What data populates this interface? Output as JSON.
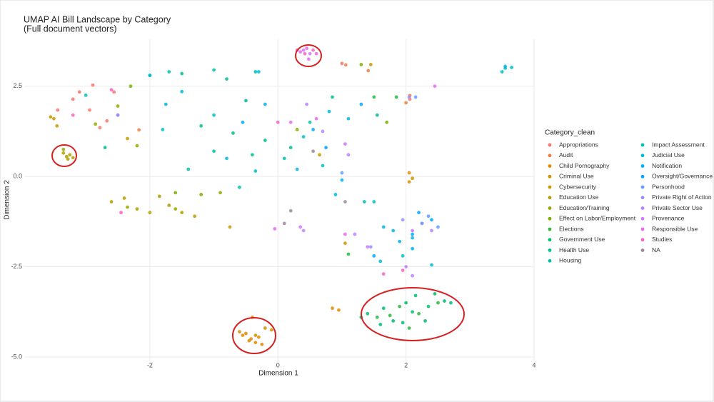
{
  "chart_data": {
    "type": "scatter",
    "title": "UMAP AI Bill Landscape by Category",
    "subtitle": "(Full document vectors)",
    "x_label": "Dimension 1",
    "y_label": "Dimension 2",
    "legend_title": "Category_clean",
    "legend_position": "right",
    "grid": true,
    "xlim": [
      -3.95,
      4.0
    ],
    "ylim": [
      -5.1,
      3.8
    ],
    "xticks": [
      -2,
      0,
      2,
      4
    ],
    "yticks": [
      2.5,
      {
        "value": 0,
        "label": "0.0"
      },
      -2.5,
      {
        "value": -5,
        "label": "-5.0"
      }
    ],
    "series": [
      {
        "name": "Appropriations",
        "color": "#F8766D",
        "x": [
          -3.1,
          -3.2,
          -2.94,
          -2.78,
          -3.44,
          -2.56,
          -2.67,
          -2.89,
          2.06,
          1.0
        ],
        "y": [
          2.34,
          2.14,
          1.84,
          1.35,
          1.84,
          2.34,
          1.54,
          2.53,
          2.14,
          3.13
        ]
      },
      {
        "name": "Audit",
        "color": "#EE8043",
        "x": [
          1.06,
          1.41,
          2.0,
          2.06,
          -2.17
        ],
        "y": [
          3.09,
          2.93,
          2.04,
          2.24,
          1.29
        ]
      },
      {
        "name": "Child Pornography",
        "color": "#E38900",
        "x": [
          -0.5,
          -0.42,
          -0.35,
          -0.3,
          -0.55,
          -0.25,
          0.85,
          0.95,
          2.05
        ],
        "y": [
          -4.35,
          -4.5,
          -4.6,
          -4.45,
          -4.4,
          -4.65,
          -3.65,
          -3.7,
          0.1
        ]
      },
      {
        "name": "Criminal Use",
        "color": "#D59100",
        "x": [
          -0.4,
          -0.2,
          -0.45,
          -0.6,
          -0.35,
          1.05,
          2.1,
          2.05,
          -0.1
        ],
        "y": [
          -3.9,
          -4.2,
          -4.55,
          -4.3,
          -4.4,
          -1.85,
          -0.05,
          -0.15,
          -4.25
        ]
      },
      {
        "name": "Cybersecurity",
        "color": "#C49A00",
        "x": [
          -3.5,
          -3.55,
          -3.45,
          -2.35,
          -0.75,
          -1.3,
          0.65,
          1.45
        ],
        "y": [
          1.6,
          1.65,
          1.4,
          1.05,
          -1.4,
          -1.1,
          0.6,
          3.1
        ]
      },
      {
        "name": "Education Use",
        "color": "#B0A100",
        "x": [
          -3.3,
          -3.25,
          -3.35,
          -3.28,
          -3.2,
          -2.4,
          -2.2,
          -2.0,
          -1.7,
          -1.5,
          -2.6,
          -1.85
        ],
        "y": [
          0.55,
          0.6,
          0.65,
          0.48,
          0.52,
          -0.6,
          -0.9,
          -1.0,
          -0.8,
          -1.0,
          -0.7,
          -0.55
        ]
      },
      {
        "name": "Education/Training",
        "color": "#99A800",
        "x": [
          -3.35,
          -2.85,
          -2.5,
          -2.2,
          -1.6,
          -2.35,
          -0.9
        ],
        "y": [
          0.75,
          1.45,
          1.95,
          0.85,
          -0.9,
          -0.85,
          -0.45
        ]
      },
      {
        "name": "Effect on Labor/Employment",
        "color": "#7CAE00",
        "x": [
          -2.3,
          -1.6,
          1.3,
          1.7,
          -1.2,
          0.3
        ],
        "y": [
          2.5,
          -0.45,
          3.1,
          1.5,
          -0.5,
          1.3
        ]
      },
      {
        "name": "Elections",
        "color": "#2EB63E",
        "x": [
          1.75,
          1.9,
          2.2,
          2.5,
          1.55,
          2.05,
          1.5,
          1.85,
          1.1
        ],
        "y": [
          -3.85,
          -3.6,
          -3.8,
          -3.5,
          -3.9,
          -4.2,
          2.2,
          2.2,
          -2.15
        ]
      },
      {
        "name": "Government Use",
        "color": "#00BE70",
        "x": [
          1.4,
          1.65,
          1.8,
          2.0,
          2.15,
          2.35,
          2.6,
          2.7,
          1.6,
          2.3,
          1.3,
          1.95,
          2.45,
          2.1
        ],
        "y": [
          -3.8,
          -3.65,
          -4.0,
          -3.5,
          -3.3,
          -3.6,
          -3.45,
          -3.5,
          -4.1,
          -4.0,
          -3.9,
          -4.05,
          -3.25,
          -3.75
        ]
      },
      {
        "name": "Health Use",
        "color": "#00C08E",
        "x": [
          -2.0,
          -1.5,
          -0.8,
          -0.5,
          -0.7,
          -0.2,
          0.2,
          -1.2,
          -0.4,
          1.55,
          -2.7,
          0.85
        ],
        "y": [
          2.8,
          2.85,
          2.7,
          2.1,
          1.2,
          1.0,
          0.8,
          1.4,
          0.6,
          1.7,
          0.8,
          2.2
        ]
      },
      {
        "name": "Housing",
        "color": "#00C1A9",
        "x": [
          -1.7,
          -1.0,
          -0.35,
          0.5,
          0.1,
          -1.4,
          -0.6,
          1.35,
          3.55,
          -1.0
        ],
        "y": [
          2.9,
          2.95,
          2.9,
          1.5,
          0.5,
          0.2,
          -0.3,
          -0.7,
          3.0,
          0.7
        ]
      },
      {
        "name": "Impact Assessment",
        "color": "#00BFC4",
        "x": [
          -3.0,
          -2.5,
          -1.8,
          -1.0,
          0.4,
          0.7,
          -0.35,
          1.5,
          3.5,
          3.65,
          1.95
        ],
        "y": [
          2.25,
          1.7,
          1.3,
          1.7,
          1.1,
          0.3,
          0.15,
          -0.7,
          2.9,
          3.02,
          -2.2
        ]
      },
      {
        "name": "Judicial Use",
        "color": "#00BBDC",
        "x": [
          -1.75,
          -1.5,
          -2.0,
          -0.3,
          0.8,
          1.1,
          -0.8,
          0.9,
          2.1,
          2.4,
          1.6
        ],
        "y": [
          2.0,
          2.35,
          2.8,
          2.9,
          1.8,
          1.6,
          0.5,
          -0.5,
          -1.7,
          -2.45,
          -2.35
        ]
      },
      {
        "name": "Notification",
        "color": "#00B4EF",
        "x": [
          -0.2,
          0.3,
          1.0,
          1.65,
          2.25,
          1.9,
          2.1,
          3.55,
          1.8
        ],
        "y": [
          2.0,
          0.2,
          -0.1,
          -1.4,
          -1.3,
          -1.8,
          -2.0,
          3.05,
          -1.5
        ]
      },
      {
        "name": "Oversight/Governance",
        "color": "#00A9FF",
        "x": [
          -0.55,
          0.55,
          0.75,
          1.3,
          2.2,
          2.4,
          1.5,
          2.1
        ],
        "y": [
          1.5,
          1.3,
          0.8,
          2.0,
          -1.0,
          -1.2,
          -2.2,
          -1.6
        ]
      },
      {
        "name": "Personhood",
        "color": "#619CFF",
        "x": [
          2.15,
          2.35,
          2.5,
          1.0
        ],
        "y": [
          2.2,
          -1.1,
          -1.4,
          0.1
        ]
      },
      {
        "name": "Private Right of Action",
        "color": "#9590FF",
        "x": [
          2.05,
          1.45,
          1.95,
          2.25
        ],
        "y": [
          2.2,
          -1.95,
          -1.2,
          -1.3
        ]
      },
      {
        "name": "Private Sector Use",
        "color": "#B983FF",
        "x": [
          0.45,
          0.7,
          1.1,
          1.2,
          2.4,
          2.0,
          0.4,
          -2.5,
          2.1
        ],
        "y": [
          2.0,
          1.25,
          0.6,
          -1.6,
          -1.5,
          -2.5,
          -1.5,
          1.7,
          -2.75
        ]
      },
      {
        "name": "Provenance",
        "color": "#D376FF",
        "x": [
          0.4,
          0.5,
          1.4,
          2.1,
          0.35,
          1.05
        ],
        "y": [
          3.5,
          3.4,
          -1.95,
          -1.5,
          -1.4,
          0.9
        ]
      },
      {
        "name": "Responsible Use",
        "color": "#E76BF3",
        "x": [
          0.35,
          0.45,
          0.6,
          0.48,
          0.2,
          0.6,
          2.45,
          -0.05,
          1.05
        ],
        "y": [
          3.45,
          3.55,
          3.4,
          3.25,
          1.5,
          1.6,
          2.5,
          -1.45,
          -1.6
        ]
      },
      {
        "name": "Studies",
        "color": "#FA62C4",
        "x": [
          0.3,
          0.55,
          0.42,
          -2.45,
          -3.2,
          -2.6,
          0.0,
          1.95,
          1.65
        ],
        "y": [
          3.5,
          3.5,
          3.4,
          -1.0,
          1.7,
          2.4,
          1.5,
          -2.6,
          -2.7
        ]
      },
      {
        "name": "NA",
        "color": "#9C8A9E",
        "x": [
          0.1,
          0.2,
          1.05,
          0.55
        ],
        "y": [
          -1.3,
          -0.95,
          -0.7,
          0.7
        ]
      }
    ]
  }
}
